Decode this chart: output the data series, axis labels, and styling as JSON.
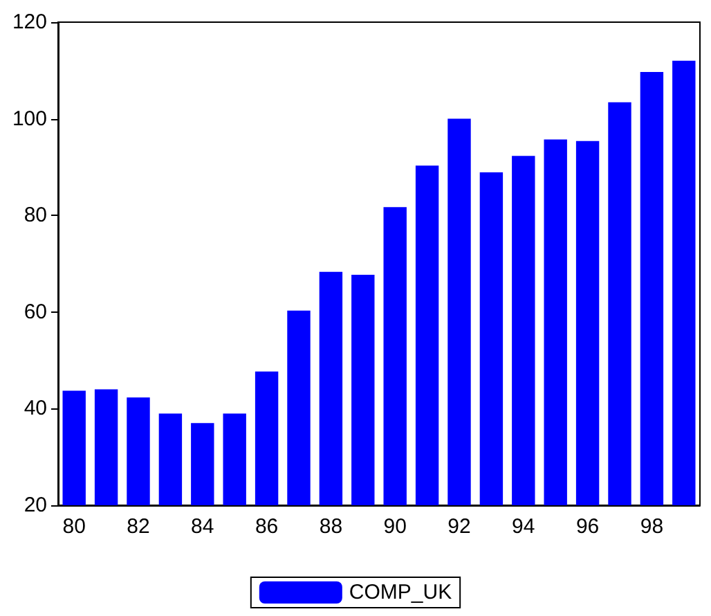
{
  "chart_data": {
    "type": "bar",
    "categories": [
      "80",
      null,
      "82",
      null,
      "84",
      null,
      "86",
      null,
      "88",
      null,
      "90",
      null,
      "92",
      null,
      "94",
      null,
      "96",
      null,
      "98",
      null
    ],
    "series": [
      {
        "name": "COMP_UK",
        "color": "#0000ff",
        "values": [
          43.7,
          44,
          42.3,
          39,
          37,
          39,
          47.7,
          60.3,
          68.3,
          67.7,
          81.7,
          90.3,
          100,
          88.9,
          92.3,
          95.7,
          95.4,
          103.4,
          109.7,
          112
        ]
      }
    ],
    "ylim": [
      20,
      120
    ],
    "yticks": [
      20,
      40,
      60,
      80,
      100,
      120
    ],
    "grid": false,
    "legend": "bottom"
  }
}
